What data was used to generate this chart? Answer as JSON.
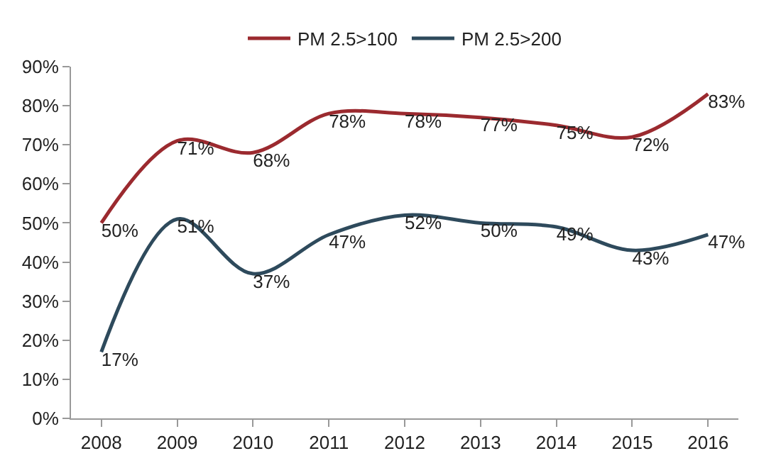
{
  "chart_data": {
    "type": "line",
    "categories": [
      "2008",
      "2009",
      "2010",
      "2011",
      "2012",
      "2013",
      "2014",
      "2015",
      "2016"
    ],
    "series": [
      {
        "name": "PM 2.5>100",
        "color": "#9b2a2f",
        "values": [
          50,
          71,
          68,
          78,
          78,
          77,
          75,
          72,
          83
        ],
        "value_labels": [
          "50%",
          "71%",
          "68%",
          "78%",
          "78%",
          "77%",
          "75%",
          "72%",
          "83%"
        ]
      },
      {
        "name": "PM 2.5>200",
        "color": "#2e4a5c",
        "values": [
          17,
          51,
          37,
          47,
          52,
          50,
          49,
          43,
          47
        ],
        "value_labels": [
          "17%",
          "51%",
          "37%",
          "47%",
          "52%",
          "50%",
          "49%",
          "43%",
          "47%"
        ]
      }
    ],
    "ylim": [
      0,
      90
    ],
    "yticks": [
      {
        "value": 0,
        "label": "0%"
      },
      {
        "value": 10,
        "label": "10%"
      },
      {
        "value": 20,
        "label": "20%"
      },
      {
        "value": 30,
        "label": "30%"
      },
      {
        "value": 40,
        "label": "40%"
      },
      {
        "value": 50,
        "label": "50%"
      },
      {
        "value": 60,
        "label": "60%"
      },
      {
        "value": 70,
        "label": "70%"
      },
      {
        "value": 80,
        "label": "80%"
      },
      {
        "value": 90,
        "label": "90%"
      }
    ],
    "grid": false,
    "legend": "top",
    "marker": "none",
    "line_style": "solid"
  }
}
